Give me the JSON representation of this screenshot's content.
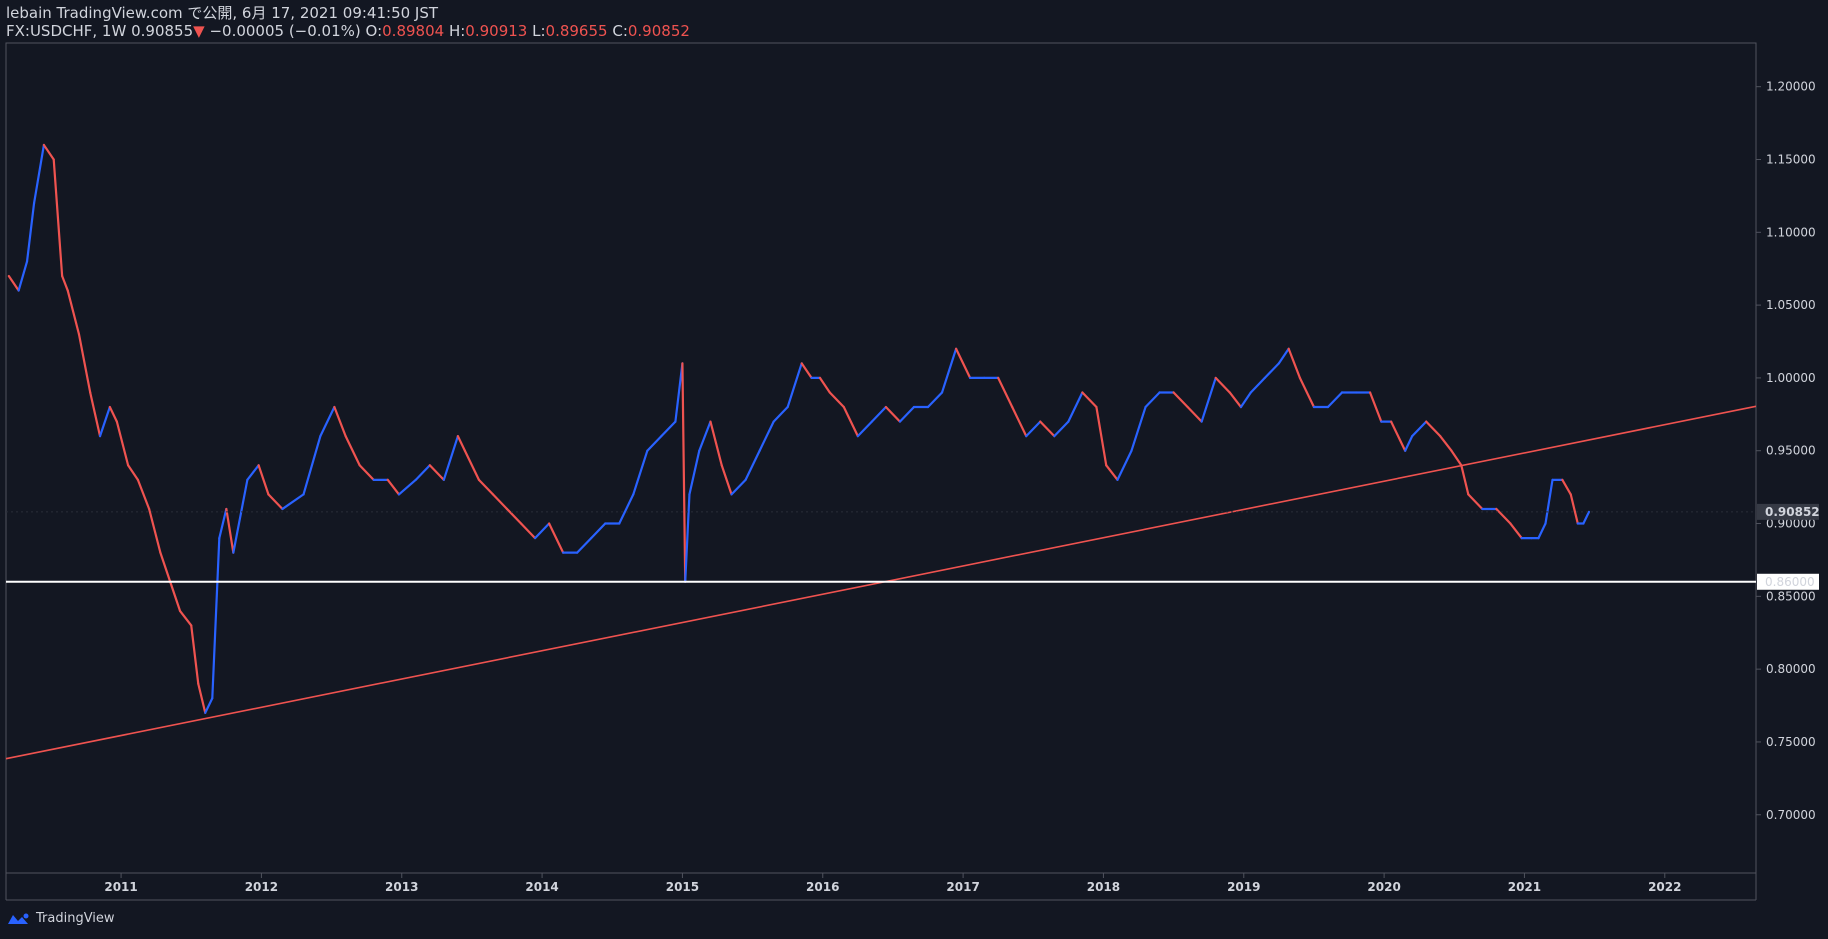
{
  "header": {
    "line1": "lebain TradingView.com で公開, 6月 17, 2021 09:41:50 JST",
    "symbol": "FX:USDCHF, 1W",
    "last": "0.90855",
    "down_arrow": "▼",
    "change": "−0.00005 (−0.01%)",
    "o_label": "O:",
    "o_value": "0.89804",
    "h_label": "H:",
    "h_value": "0.90913",
    "l_label": "L:",
    "l_value": "0.89655",
    "c_label": "C:",
    "c_value": "0.90852"
  },
  "footer": {
    "brand": "TradingView"
  },
  "colors": {
    "background": "#131722",
    "up": "#2962ff",
    "down": "#ef5350",
    "text": "#d1d4dc",
    "border": "#50535e",
    "trendline": "#ef5350",
    "support": "#ffffff"
  },
  "chart_data": {
    "type": "line",
    "symbol": "FX:USDCHF",
    "interval": "1W",
    "x_ticks": [
      "2011",
      "2012",
      "2013",
      "2014",
      "2015",
      "2016",
      "2017",
      "2018",
      "2019",
      "2020",
      "2021",
      "2022"
    ],
    "y_ticks": [
      "1.20000",
      "1.15000",
      "1.10000",
      "1.05000",
      "1.00000",
      "0.95000",
      "0.90000",
      "0.85000",
      "0.80000",
      "0.75000",
      "0.70000"
    ],
    "ylim": [
      0.66,
      1.23
    ],
    "xlim": [
      2010.18,
      2022.65
    ],
    "last_price_label": "0.90852",
    "level_label": "0.86000",
    "horizontal_level": 0.86,
    "trendline": {
      "x": [
        2010.18,
        2022.65
      ],
      "y": [
        0.7385,
        0.9805
      ]
    },
    "series": [
      {
        "values": [
          [
            2010.2,
            1.07
          ],
          [
            2010.27,
            1.06
          ],
          [
            2010.33,
            1.08
          ],
          [
            2010.38,
            1.12
          ],
          [
            2010.45,
            1.16
          ],
          [
            2010.52,
            1.15
          ],
          [
            2010.58,
            1.07
          ],
          [
            2010.62,
            1.06
          ],
          [
            2010.7,
            1.03
          ],
          [
            2010.78,
            0.99
          ],
          [
            2010.85,
            0.96
          ],
          [
            2010.92,
            0.98
          ],
          [
            2010.97,
            0.97
          ],
          [
            2011.05,
            0.94
          ],
          [
            2011.12,
            0.93
          ],
          [
            2011.2,
            0.91
          ],
          [
            2011.28,
            0.88
          ],
          [
            2011.35,
            0.86
          ],
          [
            2011.42,
            0.84
          ],
          [
            2011.5,
            0.83
          ],
          [
            2011.55,
            0.79
          ],
          [
            2011.6,
            0.77
          ],
          [
            2011.65,
            0.78
          ],
          [
            2011.7,
            0.89
          ],
          [
            2011.75,
            0.91
          ],
          [
            2011.8,
            0.88
          ],
          [
            2011.9,
            0.93
          ],
          [
            2011.98,
            0.94
          ],
          [
            2012.05,
            0.92
          ],
          [
            2012.15,
            0.91
          ],
          [
            2012.3,
            0.92
          ],
          [
            2012.42,
            0.96
          ],
          [
            2012.52,
            0.98
          ],
          [
            2012.6,
            0.96
          ],
          [
            2012.7,
            0.94
          ],
          [
            2012.8,
            0.93
          ],
          [
            2012.9,
            0.93
          ],
          [
            2012.98,
            0.92
          ],
          [
            2013.1,
            0.93
          ],
          [
            2013.2,
            0.94
          ],
          [
            2013.3,
            0.93
          ],
          [
            2013.4,
            0.96
          ],
          [
            2013.45,
            0.95
          ],
          [
            2013.55,
            0.93
          ],
          [
            2013.65,
            0.92
          ],
          [
            2013.75,
            0.91
          ],
          [
            2013.85,
            0.9
          ],
          [
            2013.95,
            0.89
          ],
          [
            2014.05,
            0.9
          ],
          [
            2014.15,
            0.88
          ],
          [
            2014.25,
            0.88
          ],
          [
            2014.35,
            0.89
          ],
          [
            2014.45,
            0.9
          ],
          [
            2014.55,
            0.9
          ],
          [
            2014.65,
            0.92
          ],
          [
            2014.75,
            0.95
          ],
          [
            2014.85,
            0.96
          ],
          [
            2014.95,
            0.97
          ],
          [
            2015.0,
            1.01
          ],
          [
            2015.02,
            0.86
          ],
          [
            2015.05,
            0.92
          ],
          [
            2015.12,
            0.95
          ],
          [
            2015.2,
            0.97
          ],
          [
            2015.28,
            0.94
          ],
          [
            2015.35,
            0.92
          ],
          [
            2015.45,
            0.93
          ],
          [
            2015.55,
            0.95
          ],
          [
            2015.65,
            0.97
          ],
          [
            2015.75,
            0.98
          ],
          [
            2015.85,
            1.01
          ],
          [
            2015.92,
            1.0
          ],
          [
            2015.98,
            1.0
          ],
          [
            2016.05,
            0.99
          ],
          [
            2016.15,
            0.98
          ],
          [
            2016.25,
            0.96
          ],
          [
            2016.35,
            0.97
          ],
          [
            2016.45,
            0.98
          ],
          [
            2016.55,
            0.97
          ],
          [
            2016.65,
            0.98
          ],
          [
            2016.75,
            0.98
          ],
          [
            2016.85,
            0.99
          ],
          [
            2016.95,
            1.02
          ],
          [
            2017.05,
            1.0
          ],
          [
            2017.15,
            1.0
          ],
          [
            2017.25,
            1.0
          ],
          [
            2017.35,
            0.98
          ],
          [
            2017.45,
            0.96
          ],
          [
            2017.55,
            0.97
          ],
          [
            2017.65,
            0.96
          ],
          [
            2017.75,
            0.97
          ],
          [
            2017.85,
            0.99
          ],
          [
            2017.95,
            0.98
          ],
          [
            2018.02,
            0.94
          ],
          [
            2018.1,
            0.93
          ],
          [
            2018.2,
            0.95
          ],
          [
            2018.3,
            0.98
          ],
          [
            2018.4,
            0.99
          ],
          [
            2018.5,
            0.99
          ],
          [
            2018.6,
            0.98
          ],
          [
            2018.7,
            0.97
          ],
          [
            2018.8,
            1.0
          ],
          [
            2018.9,
            0.99
          ],
          [
            2018.98,
            0.98
          ],
          [
            2019.05,
            0.99
          ],
          [
            2019.15,
            1.0
          ],
          [
            2019.25,
            1.01
          ],
          [
            2019.32,
            1.02
          ],
          [
            2019.4,
            1.0
          ],
          [
            2019.5,
            0.98
          ],
          [
            2019.6,
            0.98
          ],
          [
            2019.7,
            0.99
          ],
          [
            2019.8,
            0.99
          ],
          [
            2019.9,
            0.99
          ],
          [
            2019.98,
            0.97
          ],
          [
            2020.05,
            0.97
          ],
          [
            2020.15,
            0.95
          ],
          [
            2020.2,
            0.96
          ],
          [
            2020.3,
            0.97
          ],
          [
            2020.4,
            0.96
          ],
          [
            2020.48,
            0.95
          ],
          [
            2020.55,
            0.94
          ],
          [
            2020.6,
            0.92
          ],
          [
            2020.7,
            0.91
          ],
          [
            2020.8,
            0.91
          ],
          [
            2020.9,
            0.9
          ],
          [
            2020.98,
            0.89
          ],
          [
            2021.05,
            0.89
          ],
          [
            2021.1,
            0.89
          ],
          [
            2021.15,
            0.9
          ],
          [
            2021.2,
            0.93
          ],
          [
            2021.27,
            0.93
          ],
          [
            2021.33,
            0.92
          ],
          [
            2021.38,
            0.9
          ],
          [
            2021.42,
            0.9
          ],
          [
            2021.46,
            0.908
          ]
        ]
      }
    ]
  }
}
